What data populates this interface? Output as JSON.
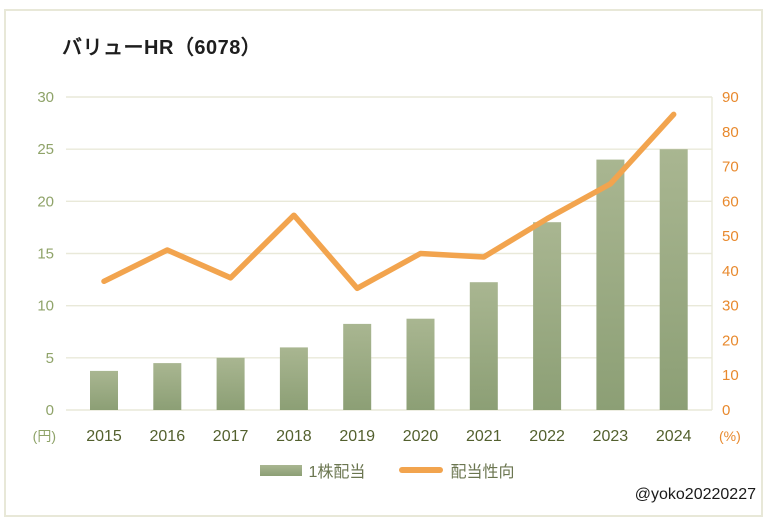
{
  "title": "バリューHR（6078）",
  "credit": "@yoko20220227",
  "colors": {
    "bar_top": "#a9b691",
    "bar_bottom": "#8c9f75",
    "line": "#f2a44e",
    "left_axis_text": "#8fa369",
    "right_axis_text": "#e8892d",
    "year_text": "#53602e",
    "legend_text": "#6b7650",
    "gridline": "#e9e9d9",
    "frame_border": "#e8e8d8"
  },
  "chart_data": {
    "type": "bar",
    "subtype": "bar+line combo, dual axis",
    "categories": [
      "2015",
      "2016",
      "2017",
      "2018",
      "2019",
      "2020",
      "2021",
      "2022",
      "2023",
      "2024"
    ],
    "series": [
      {
        "name": "1株配当",
        "type": "bar",
        "axis": "left",
        "values": [
          3.75,
          4.5,
          5,
          6,
          8.25,
          8.75,
          12.25,
          18,
          24,
          25
        ]
      },
      {
        "name": "配当性向",
        "type": "line",
        "axis": "right",
        "values": [
          37,
          46,
          38,
          56,
          35,
          45,
          44,
          55,
          65,
          85
        ]
      }
    ],
    "left_axis": {
      "unit": "(円)",
      "min": 0,
      "max": 30,
      "step": 5,
      "ticks": [
        0,
        5,
        10,
        15,
        20,
        25,
        30
      ]
    },
    "right_axis": {
      "unit": "(%)",
      "min": 0,
      "max": 90,
      "step": 10,
      "ticks": [
        0,
        10,
        20,
        30,
        40,
        50,
        60,
        70,
        80,
        90
      ]
    },
    "grid": true,
    "legend_position": "bottom"
  }
}
